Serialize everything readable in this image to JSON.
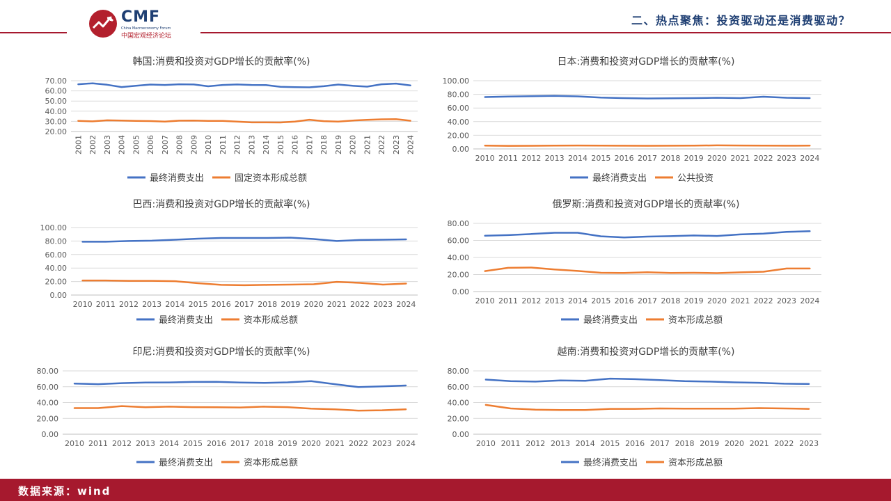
{
  "header": {
    "logo_text": "CMF",
    "logo_subtitle_en": "China Macroeconomy Forum",
    "logo_subtitle_cn": "中国宏观经济论坛",
    "section_title": "二、热点聚焦：投资驱动还是消费驱动？"
  },
  "footer": {
    "source": "数据来源：wind"
  },
  "colors": {
    "brand_red": "#a6192e",
    "brand_navy": "#1f3f73",
    "series_blue": "#4472c4",
    "series_orange": "#ed7d31"
  },
  "chart_data": [
    {
      "type": "line",
      "title": "韩国:消费和投资对GDP增长的贡献率(%)",
      "x": [
        "2001",
        "2002",
        "2003",
        "2004",
        "2005",
        "2006",
        "2007",
        "2008",
        "2009",
        "2010",
        "2011",
        "2012",
        "2013",
        "2014",
        "2015",
        "2016",
        "2017",
        "2018",
        "2019",
        "2020",
        "2021",
        "2022",
        "2023",
        "2024"
      ],
      "ylim": [
        20,
        70
      ],
      "yticks": [
        "20.00",
        "30.00",
        "40.00",
        "50.00",
        "60.00",
        "70.00"
      ],
      "x_label_rotation": "vertical",
      "grid": "horizontal",
      "legend_position": "bottom",
      "series": [
        {
          "name": "最终消费支出",
          "color": "#4472c4",
          "values": [
            66.5,
            67.5,
            66,
            63.8,
            65,
            66.2,
            65.8,
            66.5,
            66.3,
            64.5,
            65.8,
            66.3,
            65.8,
            65.7,
            64,
            63.6,
            63.5,
            64.6,
            66.2,
            65,
            64.2,
            66.5,
            67.2,
            65.4
          ]
        },
        {
          "name": "固定资本形成总额",
          "color": "#ed7d31",
          "values": [
            30.5,
            30,
            31,
            30.8,
            30.5,
            30.3,
            29.8,
            30.7,
            30.8,
            30.5,
            30.5,
            29.8,
            29,
            29,
            28.9,
            29.8,
            31.6,
            30.2,
            29.8,
            30.8,
            31.5,
            32,
            32.2,
            30.6
          ]
        }
      ]
    },
    {
      "type": "line",
      "title": "日本:消费和投资对GDP增长的贡献率(%)",
      "x": [
        "2010",
        "2011",
        "2012",
        "2013",
        "2014",
        "2015",
        "2016",
        "2017",
        "2018",
        "2019",
        "2020",
        "2021",
        "2022",
        "2023",
        "2024"
      ],
      "ylim": [
        0,
        100
      ],
      "yticks": [
        "0.00",
        "20.00",
        "40.00",
        "60.00",
        "80.00",
        "100.00"
      ],
      "grid": "horizontal",
      "legend_position": "bottom",
      "series": [
        {
          "name": "最终消费支出",
          "color": "#4472c4",
          "values": [
            76,
            76.8,
            77.3,
            77.8,
            77,
            75.2,
            74.5,
            74,
            74.3,
            74.5,
            75,
            74.5,
            76.5,
            75,
            74.5
          ]
        },
        {
          "name": "公共投资",
          "color": "#ed7d31",
          "values": [
            4.8,
            4.5,
            4.6,
            4.8,
            5,
            4.8,
            4.7,
            4.6,
            4.7,
            4.8,
            5.2,
            5,
            4.8,
            4.7,
            4.8
          ]
        }
      ]
    },
    {
      "type": "line",
      "title": "巴西:消费和投资对GDP增长的贡献率(%)",
      "x": [
        "2010",
        "2011",
        "2012",
        "2013",
        "2014",
        "2015",
        "2016",
        "2017",
        "2018",
        "2019",
        "2020",
        "2021",
        "2022",
        "2023",
        "2024"
      ],
      "ylim": [
        0,
        100
      ],
      "yticks": [
        "0.00",
        "20.00",
        "40.00",
        "60.00",
        "80.00",
        "100.00"
      ],
      "grid": "horizontal",
      "legend_position": "bottom",
      "series": [
        {
          "name": "最终消费支出",
          "color": "#4472c4",
          "values": [
            79,
            79,
            80,
            80.5,
            82,
            83.5,
            84.5,
            84.5,
            84.5,
            85,
            83,
            80,
            81.5,
            82,
            82.5
          ]
        },
        {
          "name": "资本形成总额",
          "color": "#ed7d31",
          "values": [
            21.5,
            21.5,
            21,
            21,
            20.5,
            17.5,
            15,
            14.5,
            15,
            15.5,
            16,
            19.5,
            18,
            15.5,
            17
          ]
        }
      ]
    },
    {
      "type": "line",
      "title": "俄罗斯:消费和投资对GDP增长的贡献率(%)",
      "x": [
        "2010",
        "2011",
        "2012",
        "2013",
        "2014",
        "2015",
        "2016",
        "2017",
        "2018",
        "2019",
        "2020",
        "2021",
        "2022",
        "2023",
        "2024"
      ],
      "ylim": [
        0,
        80
      ],
      "yticks": [
        "0.00",
        "20.00",
        "40.00",
        "60.00",
        "80.00"
      ],
      "grid": "horizontal",
      "legend_position": "bottom",
      "series": [
        {
          "name": "最终消费支出",
          "color": "#4472c4",
          "values": [
            65.5,
            66.2,
            67.5,
            69,
            69,
            64.8,
            63.5,
            64.5,
            65,
            65.8,
            65.2,
            67,
            68,
            70,
            70.8
          ]
        },
        {
          "name": "资本形成总额",
          "color": "#ed7d31",
          "values": [
            24,
            27.8,
            28.2,
            26,
            24.2,
            22,
            21.8,
            22.7,
            21.9,
            22,
            21.6,
            22.5,
            23.3,
            27,
            27
          ]
        }
      ]
    },
    {
      "type": "line",
      "title": "印尼:消费和投资对GDP增长的贡献率(%)",
      "x": [
        "2010",
        "2011",
        "2012",
        "2013",
        "2014",
        "2015",
        "2016",
        "2017",
        "2018",
        "2019",
        "2020",
        "2021",
        "2022",
        "2023",
        "2024"
      ],
      "ylim": [
        0,
        80
      ],
      "yticks": [
        "0.00",
        "20.00",
        "40.00",
        "60.00",
        "80.00"
      ],
      "grid": "horizontal",
      "legend_position": "bottom",
      "series": [
        {
          "name": "最终消费支出",
          "color": "#4472c4",
          "values": [
            64,
            63.2,
            64.5,
            65.2,
            65.4,
            66,
            66.2,
            65.2,
            64.8,
            65.5,
            67,
            63.2,
            59.5,
            60.5,
            61.5
          ]
        },
        {
          "name": "资本形成总额",
          "color": "#ed7d31",
          "values": [
            33,
            33,
            35.5,
            34,
            34.8,
            34.2,
            34,
            33.8,
            34.8,
            34.2,
            32.3,
            31.5,
            29.8,
            30.2,
            31.5
          ]
        }
      ]
    },
    {
      "type": "line",
      "title": "越南:消费和投资对GDP增长的贡献率(%)",
      "x": [
        "2010",
        "2011",
        "2012",
        "2013",
        "2014",
        "2015",
        "2016",
        "2017",
        "2018",
        "2019",
        "2020",
        "2021",
        "2022",
        "2023"
      ],
      "ylim": [
        0,
        80
      ],
      "yticks": [
        "0.00",
        "20.00",
        "40.00",
        "60.00",
        "80.00"
      ],
      "grid": "horizontal",
      "legend_position": "bottom",
      "series": [
        {
          "name": "最终消费支出",
          "color": "#4472c4",
          "values": [
            69,
            67,
            66.5,
            68,
            67.5,
            70.2,
            69.5,
            68.3,
            67,
            66.5,
            65.5,
            65,
            63.8,
            63.5
          ]
        },
        {
          "name": "资本形成总额",
          "color": "#ed7d31",
          "values": [
            37,
            32.5,
            31,
            30.5,
            30.5,
            32,
            32,
            32.5,
            32.3,
            32.3,
            32.3,
            33,
            32.5,
            32
          ]
        }
      ]
    }
  ]
}
